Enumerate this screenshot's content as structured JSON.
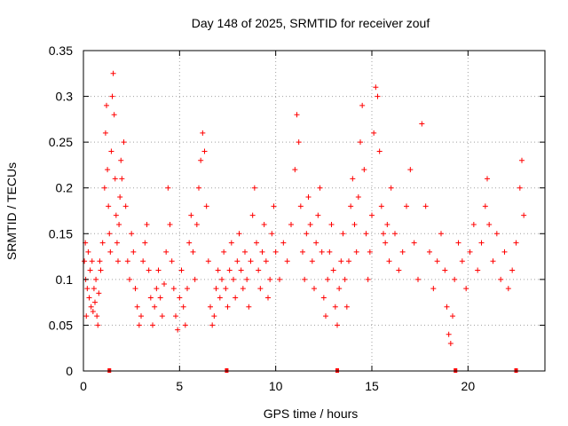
{
  "chart_data": {
    "type": "scatter",
    "title": "Day 148 of 2025, SRMTID for receiver zouf",
    "xlabel": "GPS time / hours",
    "ylabel": "SRMTID / TECUs",
    "xlim": [
      0,
      24
    ],
    "ylim": [
      0,
      0.35
    ],
    "x_ticks": [
      0,
      5,
      10,
      15,
      20
    ],
    "y_ticks": [
      0,
      0.05,
      0.1,
      0.15,
      0.2,
      0.25,
      0.3,
      0.35
    ],
    "x_tick_labels": [
      "0",
      "5",
      "10",
      "15",
      "20"
    ],
    "y_tick_labels": [
      "0",
      "0.05",
      "0.1",
      "0.15",
      "0.2",
      "0.25",
      "0.3",
      "0.35"
    ],
    "grid": true,
    "marker": "+",
    "color": "#ff0000",
    "gap_markers_x": [
      1.35,
      7.45,
      13.2,
      19.35,
      22.5
    ],
    "series": [
      {
        "name": "SRMTID",
        "points": [
          [
            0.05,
            0.12
          ],
          [
            0.1,
            0.14
          ],
          [
            0.12,
            0.1
          ],
          [
            0.15,
            0.06
          ],
          [
            0.2,
            0.09
          ],
          [
            0.25,
            0.13
          ],
          [
            0.3,
            0.08
          ],
          [
            0.35,
            0.11
          ],
          [
            0.4,
            0.07
          ],
          [
            0.45,
            0.12
          ],
          [
            0.5,
            0.065
          ],
          [
            0.55,
            0.09
          ],
          [
            0.6,
            0.075
          ],
          [
            0.65,
            0.1
          ],
          [
            0.7,
            0.06
          ],
          [
            0.75,
            0.05
          ],
          [
            0.8,
            0.085
          ],
          [
            0.85,
            0.12
          ],
          [
            0.9,
            0.11
          ],
          [
            1.0,
            0.14
          ],
          [
            1.1,
            0.2
          ],
          [
            1.15,
            0.26
          ],
          [
            1.2,
            0.29
          ],
          [
            1.25,
            0.22
          ],
          [
            1.3,
            0.18
          ],
          [
            1.35,
            0.15
          ],
          [
            1.4,
            0.13
          ],
          [
            1.45,
            0.24
          ],
          [
            1.5,
            0.3
          ],
          [
            1.55,
            0.325
          ],
          [
            1.6,
            0.28
          ],
          [
            1.65,
            0.21
          ],
          [
            1.7,
            0.17
          ],
          [
            1.75,
            0.14
          ],
          [
            1.8,
            0.12
          ],
          [
            1.85,
            0.16
          ],
          [
            1.9,
            0.19
          ],
          [
            1.95,
            0.23
          ],
          [
            2.0,
            0.21
          ],
          [
            2.1,
            0.25
          ],
          [
            2.2,
            0.18
          ],
          [
            2.3,
            0.12
          ],
          [
            2.4,
            0.1
          ],
          [
            2.5,
            0.15
          ],
          [
            2.6,
            0.13
          ],
          [
            2.7,
            0.09
          ],
          [
            2.8,
            0.07
          ],
          [
            2.9,
            0.05
          ],
          [
            3.0,
            0.06
          ],
          [
            3.1,
            0.12
          ],
          [
            3.2,
            0.14
          ],
          [
            3.3,
            0.16
          ],
          [
            3.4,
            0.11
          ],
          [
            3.5,
            0.08
          ],
          [
            3.6,
            0.05
          ],
          [
            3.7,
            0.07
          ],
          [
            3.8,
            0.09
          ],
          [
            3.9,
            0.11
          ],
          [
            4.0,
            0.08
          ],
          [
            4.1,
            0.06
          ],
          [
            4.2,
            0.095
          ],
          [
            4.3,
            0.13
          ],
          [
            4.4,
            0.2
          ],
          [
            4.5,
            0.16
          ],
          [
            4.6,
            0.12
          ],
          [
            4.7,
            0.09
          ],
          [
            4.8,
            0.06
          ],
          [
            4.9,
            0.045
          ],
          [
            5.0,
            0.08
          ],
          [
            5.1,
            0.11
          ],
          [
            5.2,
            0.07
          ],
          [
            5.3,
            0.05
          ],
          [
            5.4,
            0.09
          ],
          [
            5.5,
            0.14
          ],
          [
            5.6,
            0.17
          ],
          [
            5.7,
            0.13
          ],
          [
            5.8,
            0.1
          ],
          [
            5.9,
            0.16
          ],
          [
            6.0,
            0.2
          ],
          [
            6.1,
            0.23
          ],
          [
            6.2,
            0.26
          ],
          [
            6.3,
            0.24
          ],
          [
            6.4,
            0.18
          ],
          [
            6.5,
            0.12
          ],
          [
            6.6,
            0.07
          ],
          [
            6.7,
            0.05
          ],
          [
            6.8,
            0.06
          ],
          [
            6.9,
            0.09
          ],
          [
            7.0,
            0.11
          ],
          [
            7.1,
            0.08
          ],
          [
            7.2,
            0.1
          ],
          [
            7.3,
            0.13
          ],
          [
            7.4,
            0.09
          ],
          [
            7.5,
            0.07
          ],
          [
            7.6,
            0.11
          ],
          [
            7.7,
            0.14
          ],
          [
            7.8,
            0.1
          ],
          [
            7.9,
            0.08
          ],
          [
            8.0,
            0.12
          ],
          [
            8.1,
            0.15
          ],
          [
            8.2,
            0.11
          ],
          [
            8.3,
            0.09
          ],
          [
            8.4,
            0.13
          ],
          [
            8.5,
            0.1
          ],
          [
            8.6,
            0.07
          ],
          [
            8.7,
            0.12
          ],
          [
            8.8,
            0.17
          ],
          [
            8.9,
            0.2
          ],
          [
            9.0,
            0.14
          ],
          [
            9.1,
            0.11
          ],
          [
            9.2,
            0.09
          ],
          [
            9.3,
            0.13
          ],
          [
            9.4,
            0.16
          ],
          [
            9.5,
            0.12
          ],
          [
            9.6,
            0.08
          ],
          [
            9.7,
            0.1
          ],
          [
            9.8,
            0.15
          ],
          [
            9.9,
            0.18
          ],
          [
            10.0,
            0.13
          ],
          [
            10.2,
            0.1
          ],
          [
            10.4,
            0.14
          ],
          [
            10.6,
            0.12
          ],
          [
            10.8,
            0.16
          ],
          [
            11.0,
            0.22
          ],
          [
            11.1,
            0.28
          ],
          [
            11.2,
            0.25
          ],
          [
            11.3,
            0.18
          ],
          [
            11.4,
            0.13
          ],
          [
            11.5,
            0.1
          ],
          [
            11.6,
            0.15
          ],
          [
            11.7,
            0.19
          ],
          [
            11.8,
            0.16
          ],
          [
            11.9,
            0.12
          ],
          [
            12.0,
            0.09
          ],
          [
            12.1,
            0.14
          ],
          [
            12.2,
            0.17
          ],
          [
            12.3,
            0.2
          ],
          [
            12.4,
            0.13
          ],
          [
            12.5,
            0.08
          ],
          [
            12.6,
            0.06
          ],
          [
            12.7,
            0.1
          ],
          [
            12.8,
            0.13
          ],
          [
            12.9,
            0.16
          ],
          [
            13.0,
            0.11
          ],
          [
            13.1,
            0.07
          ],
          [
            13.2,
            0.05
          ],
          [
            13.3,
            0.09
          ],
          [
            13.4,
            0.12
          ],
          [
            13.5,
            0.15
          ],
          [
            13.6,
            0.1
          ],
          [
            13.7,
            0.07
          ],
          [
            13.8,
            0.12
          ],
          [
            13.9,
            0.18
          ],
          [
            14.0,
            0.21
          ],
          [
            14.1,
            0.16
          ],
          [
            14.2,
            0.13
          ],
          [
            14.3,
            0.19
          ],
          [
            14.4,
            0.25
          ],
          [
            14.5,
            0.29
          ],
          [
            14.6,
            0.22
          ],
          [
            14.7,
            0.15
          ],
          [
            14.8,
            0.1
          ],
          [
            14.9,
            0.13
          ],
          [
            15.0,
            0.17
          ],
          [
            15.1,
            0.26
          ],
          [
            15.2,
            0.31
          ],
          [
            15.3,
            0.3
          ],
          [
            15.4,
            0.24
          ],
          [
            15.5,
            0.18
          ],
          [
            15.6,
            0.15
          ],
          [
            15.7,
            0.14
          ],
          [
            15.8,
            0.16
          ],
          [
            15.9,
            0.12
          ],
          [
            16.0,
            0.2
          ],
          [
            16.2,
            0.15
          ],
          [
            16.4,
            0.11
          ],
          [
            16.6,
            0.13
          ],
          [
            16.8,
            0.18
          ],
          [
            17.0,
            0.22
          ],
          [
            17.2,
            0.14
          ],
          [
            17.4,
            0.1
          ],
          [
            17.6,
            0.27
          ],
          [
            17.8,
            0.18
          ],
          [
            18.0,
            0.13
          ],
          [
            18.2,
            0.09
          ],
          [
            18.4,
            0.12
          ],
          [
            18.6,
            0.15
          ],
          [
            18.8,
            0.11
          ],
          [
            18.9,
            0.07
          ],
          [
            19.0,
            0.04
          ],
          [
            19.1,
            0.03
          ],
          [
            19.2,
            0.06
          ],
          [
            19.3,
            0.1
          ],
          [
            19.5,
            0.14
          ],
          [
            19.7,
            0.12
          ],
          [
            19.9,
            0.09
          ],
          [
            20.1,
            0.13
          ],
          [
            20.3,
            0.16
          ],
          [
            20.5,
            0.11
          ],
          [
            20.7,
            0.14
          ],
          [
            20.9,
            0.18
          ],
          [
            21.0,
            0.21
          ],
          [
            21.1,
            0.16
          ],
          [
            21.3,
            0.12
          ],
          [
            21.5,
            0.15
          ],
          [
            21.7,
            0.1
          ],
          [
            21.9,
            0.13
          ],
          [
            22.1,
            0.09
          ],
          [
            22.3,
            0.11
          ],
          [
            22.5,
            0.14
          ],
          [
            22.7,
            0.2
          ],
          [
            22.8,
            0.23
          ],
          [
            22.9,
            0.17
          ]
        ]
      }
    ]
  }
}
